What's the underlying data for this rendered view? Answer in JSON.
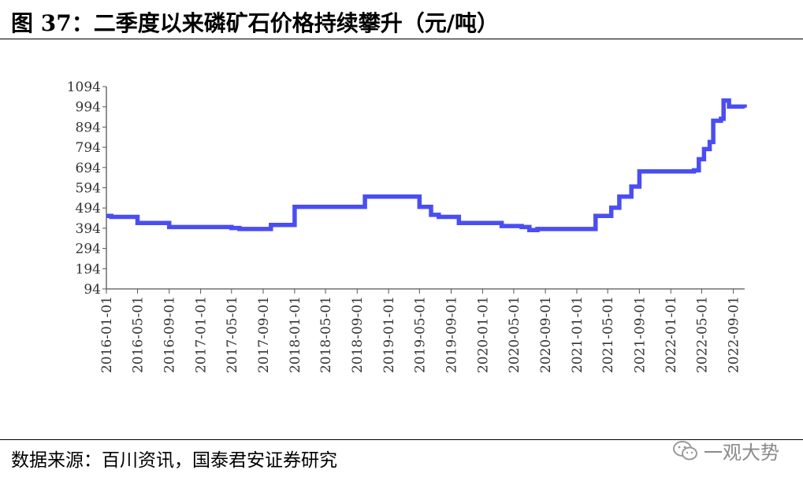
{
  "header": {
    "title": "图 37：二季度以来磷矿石价格持续攀升（元/吨）"
  },
  "footer": {
    "source": "数据来源：百川资讯，国泰君安证券研究"
  },
  "watermark": {
    "text": "一观大势",
    "icon": "wechat-icon"
  },
  "chart_data": {
    "type": "line",
    "title": "",
    "xlabel": "",
    "ylabel": "",
    "color": "#4a4ef2",
    "ylim": [
      94,
      1094
    ],
    "yticks": [
      94,
      194,
      294,
      394,
      494,
      594,
      694,
      794,
      894,
      994,
      1094
    ],
    "xticks": [
      "2016-01-01",
      "2016-05-01",
      "2016-09-01",
      "2017-01-01",
      "2017-05-01",
      "2017-09-01",
      "2018-01-01",
      "2018-05-01",
      "2018-09-01",
      "2019-01-01",
      "2019-05-01",
      "2019-09-01",
      "2020-01-01",
      "2020-05-01",
      "2020-09-01",
      "2021-01-01",
      "2021-05-01",
      "2021-09-01",
      "2022-01-01",
      "2022-05-01",
      "2022-09-01"
    ],
    "xlim": [
      "2016-01-01",
      "2022-10-15"
    ],
    "step": true,
    "series": [
      {
        "points": [
          [
            "2016-01-01",
            455
          ],
          [
            "2016-01-20",
            450
          ],
          [
            "2016-05-01",
            420
          ],
          [
            "2016-09-01",
            400
          ],
          [
            "2017-05-01",
            395
          ],
          [
            "2017-06-01",
            390
          ],
          [
            "2017-10-01",
            410
          ],
          [
            "2018-01-01",
            500
          ],
          [
            "2018-10-01",
            550
          ],
          [
            "2019-05-01",
            500
          ],
          [
            "2019-06-15",
            460
          ],
          [
            "2019-07-15",
            450
          ],
          [
            "2019-10-01",
            420
          ],
          [
            "2020-03-15",
            405
          ],
          [
            "2020-06-01",
            400
          ],
          [
            "2020-07-01",
            385
          ],
          [
            "2020-08-01",
            390
          ],
          [
            "2021-03-15",
            455
          ],
          [
            "2021-05-15",
            495
          ],
          [
            "2021-06-15",
            550
          ],
          [
            "2021-08-01",
            600
          ],
          [
            "2021-09-01",
            675
          ],
          [
            "2022-04-01",
            680
          ],
          [
            "2022-04-20",
            735
          ],
          [
            "2022-05-10",
            785
          ],
          [
            "2022-06-01",
            820
          ],
          [
            "2022-06-15",
            925
          ],
          [
            "2022-07-15",
            935
          ],
          [
            "2022-07-25",
            1025
          ],
          [
            "2022-08-15",
            995
          ],
          [
            "2022-10-15",
            990
          ]
        ]
      }
    ]
  }
}
